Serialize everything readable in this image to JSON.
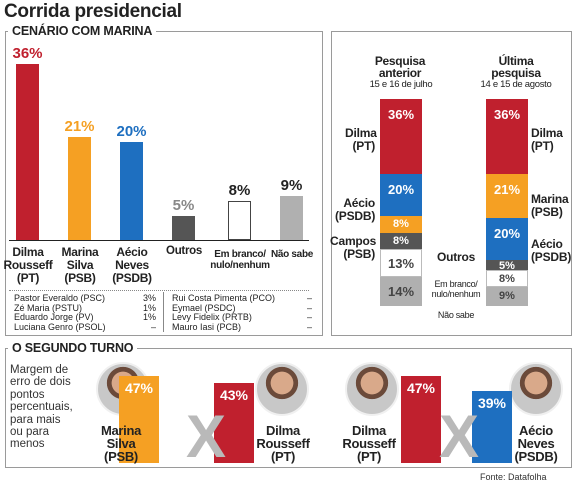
{
  "title": "Corrida presidencial",
  "scenario": {
    "section_label": "CENÁRIO COM MARINA",
    "chart_data": {
      "type": "bar",
      "categories": [
        "Dilma Rousseff (PT)",
        "Marina Silva (PSB)",
        "Aécio Neves (PSDB)",
        "Outros",
        "Em branco/ nulo/nenhum",
        "Não sabe"
      ],
      "values": [
        36,
        21,
        20,
        5,
        8,
        9
      ],
      "value_labels": [
        "36%",
        "21%",
        "20%",
        "5%",
        "8%",
        "9%"
      ],
      "colors": [
        "#c0202e",
        "#f5a023",
        "#1e6fc0",
        "#555555",
        "#ffffff",
        "#b0b0b0"
      ],
      "ylim": [
        0,
        36
      ]
    },
    "cand_labels": [
      {
        "l1": "Dilma",
        "l2": "Rousseff",
        "l3": "(PT)"
      },
      {
        "l1": "Marina",
        "l2": "Silva",
        "l3": "(PSB)"
      },
      {
        "l1": "Aécio",
        "l2": "Neves",
        "l3": "(PSDB)"
      },
      {
        "l1": "Outros",
        "l2": "",
        "l3": ""
      },
      {
        "l1": "Em branco/",
        "l2": "nulo/nenhum",
        "l3": ""
      },
      {
        "l1": "Não sabe",
        "l2": "",
        "l3": ""
      }
    ],
    "others_left": [
      {
        "name": "Pastor Everaldo (PSC)",
        "value": "3%"
      },
      {
        "name": "Zé Maria (PSTU)",
        "value": "1%"
      },
      {
        "name": "Eduardo Jorge (PV)",
        "value": "1%"
      },
      {
        "name": "Luciana Genro (PSOL)",
        "value": "–"
      }
    ],
    "others_right": [
      {
        "name": "Rui Costa Pimenta (PCO)",
        "value": "–"
      },
      {
        "name": "Eymael (PSDC)",
        "value": "–"
      },
      {
        "name": "Levy Fidelix (PRTB)",
        "value": "–"
      },
      {
        "name": "Mauro Iasi (PCB)",
        "value": "–"
      }
    ]
  },
  "compare": {
    "left_title": "Pesquisa anterior",
    "left_date": "15 e 16 de julho",
    "right_title": "Última pesquisa",
    "right_date": "14 e 15 de agosto",
    "chart_data": {
      "type": "bar",
      "stacked": true,
      "categories": [
        "Pesquisa anterior",
        "Última pesquisa"
      ],
      "series_left": [
        {
          "label": "Dilma (PT)",
          "value": 36,
          "text": "36%",
          "color": "#c0202e"
        },
        {
          "label": "Aécio (PSDB)",
          "value": 20,
          "text": "20%",
          "color": "#1e6fc0"
        },
        {
          "label": "Campos (PSB)",
          "value": 8,
          "text": "8%",
          "color": "#f5a023"
        },
        {
          "label": "Outros",
          "value": 8,
          "text": "8%",
          "color": "#555555"
        },
        {
          "label": "Em branco/ nulo/nenhum",
          "value": 13,
          "text": "13%",
          "color": "#ffffff"
        },
        {
          "label": "Não sabe",
          "value": 14,
          "text": "14%",
          "color": "#b0b0b0"
        }
      ],
      "series_right": [
        {
          "label": "Dilma (PT)",
          "value": 36,
          "text": "36%",
          "color": "#c0202e"
        },
        {
          "label": "Marina (PSB)",
          "value": 21,
          "text": "21%",
          "color": "#f5a023"
        },
        {
          "label": "Aécio (PSDB)",
          "value": 20,
          "text": "20%",
          "color": "#1e6fc0"
        },
        {
          "label": "Outros",
          "value": 5,
          "text": "5%",
          "color": "#555555"
        },
        {
          "label": "Em branco/ nulo/nenhum",
          "value": 8,
          "text": "8%",
          "color": "#ffffff"
        },
        {
          "label": "Não sabe",
          "value": 9,
          "text": "9%",
          "color": "#b0b0b0"
        }
      ]
    },
    "lbl_dilma_l": {
      "a": "Dilma",
      "b": "(PT)"
    },
    "lbl_aecio_l": {
      "a": "Aécio",
      "b": "(PSDB)"
    },
    "lbl_campos_l": {
      "a": "Campos",
      "b": "(PSB)"
    },
    "lbl_dilma_r": {
      "a": "Dilma",
      "b": "(PT)"
    },
    "lbl_marina_r": {
      "a": "Marina",
      "b": "(PSB)"
    },
    "lbl_aecio_r": {
      "a": "Aécio",
      "b": "(PSDB)"
    },
    "mid_outros": "Outros",
    "mid_branco_a": "Em branco/",
    "mid_branco_b": "nulo/nenhum",
    "mid_naosabe": "Não sabe"
  },
  "second": {
    "section_label": "O SEGUNDO TURNO",
    "margin_text": [
      "Margem de",
      "erro de dois",
      "pontos",
      "percentuais,",
      "para mais",
      "ou para",
      "menos"
    ],
    "chart_data": {
      "type": "bar",
      "matchups": [
        [
          {
            "label": "Marina Silva (PSB)",
            "value": 47,
            "text": "47%",
            "color": "#f5a023"
          },
          {
            "label": "Dilma Rousseff (PT)",
            "value": 43,
            "text": "43%",
            "color": "#c0202e"
          }
        ],
        [
          {
            "label": "Dilma Rousseff (PT)",
            "value": 47,
            "text": "47%",
            "color": "#c0202e"
          },
          {
            "label": "Aécio Neves (PSDB)",
            "value": 39,
            "text": "39%",
            "color": "#1e6fc0"
          }
        ]
      ]
    },
    "names": {
      "marina": {
        "a": "Marina",
        "b": "Silva",
        "c": "(PSB)"
      },
      "dilma1": {
        "a": "Dilma",
        "b": "Rousseff",
        "c": "(PT)"
      },
      "dilma2": {
        "a": "Dilma",
        "b": "Rousseff",
        "c": "(PT)"
      },
      "aecio": {
        "a": "Aécio",
        "b": "Neves",
        "c": "(PSDB)"
      }
    },
    "versus": "X"
  },
  "source": "Fonte: Datafolha"
}
